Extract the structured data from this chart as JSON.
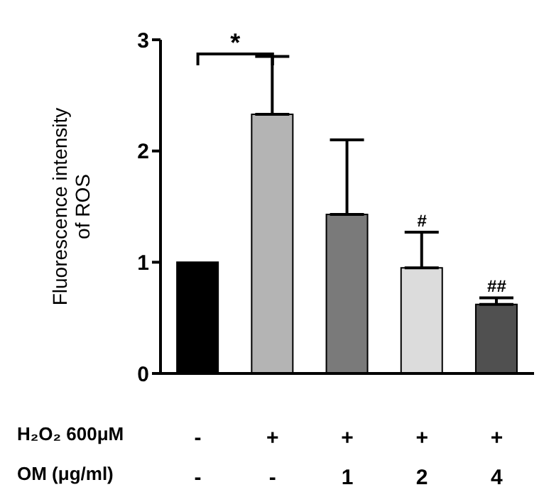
{
  "chart_data": {
    "type": "bar",
    "ylabel": "Fluorescence intensity\nof ROS",
    "categories": [
      "-\n-",
      "+\n-",
      "+\n1",
      "+\n2",
      "+\n4"
    ],
    "values": [
      1.0,
      2.33,
      1.43,
      0.95,
      0.62
    ],
    "colors": [
      "#000000",
      "#b4b4b4",
      "#7a7a7a",
      "#dcdcdc",
      "#505050"
    ],
    "errors": [
      null,
      [
        2.33,
        2.85
      ],
      [
        1.43,
        2.1
      ],
      [
        0.95,
        1.27
      ],
      [
        0.62,
        0.68
      ]
    ],
    "ylim": [
      0,
      3
    ],
    "yticks": [
      0,
      1,
      2,
      3
    ],
    "annotations": [
      "H₂O₂ 600μM",
      "OM (μg/ml)",
      "*",
      "#",
      "##"
    ]
  }
}
